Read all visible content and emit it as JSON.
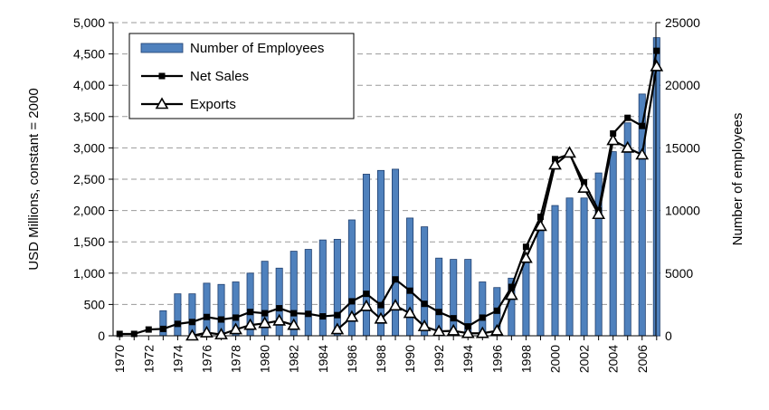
{
  "chart_data": {
    "type": "bar",
    "x": [
      1970,
      1971,
      1972,
      1973,
      1974,
      1975,
      1976,
      1977,
      1978,
      1979,
      1980,
      1981,
      1982,
      1983,
      1984,
      1985,
      1986,
      1987,
      1988,
      1989,
      1990,
      1991,
      1992,
      1993,
      1994,
      1995,
      1996,
      1997,
      1998,
      1999,
      2000,
      2001,
      2002,
      2003,
      2004,
      2005,
      2006,
      2007
    ],
    "x_tick_labels": [
      "1970",
      "1972",
      "1974",
      "1976",
      "1978",
      "1980",
      "1982",
      "1984",
      "1986",
      "1988",
      "1990",
      "1992",
      "1994",
      "1996",
      "1998",
      "2000",
      "2002",
      "2004",
      "2006"
    ],
    "series": [
      {
        "name": "Number of Employees",
        "type": "bar",
        "axis": "right",
        "color": "#4f81bd",
        "values": [
          null,
          null,
          null,
          2000,
          3350,
          3350,
          4200,
          4100,
          4300,
          5000,
          5950,
          5400,
          6750,
          6900,
          7650,
          7700,
          9250,
          12900,
          13200,
          13300,
          9400,
          8700,
          6200,
          6100,
          6100,
          4300,
          3850,
          4600,
          6000,
          8500,
          10400,
          11000,
          11000,
          13000,
          14700,
          17000,
          19300,
          23800
        ]
      },
      {
        "name": "Net Sales",
        "type": "line",
        "axis": "left",
        "marker": "square",
        "color": "#000000",
        "values": [
          30,
          30,
          100,
          110,
          190,
          220,
          300,
          260,
          290,
          380,
          360,
          440,
          360,
          350,
          310,
          330,
          550,
          670,
          490,
          900,
          720,
          510,
          380,
          280,
          150,
          290,
          400,
          780,
          1420,
          1900,
          2820,
          2900,
          2450,
          2000,
          3230,
          3480,
          3350,
          4550
        ]
      },
      {
        "name": "Exports",
        "type": "line",
        "axis": "left",
        "marker": "triangle",
        "color": "#000000",
        "values": [
          null,
          null,
          null,
          null,
          null,
          0,
          50,
          20,
          100,
          170,
          200,
          240,
          170,
          null,
          null,
          100,
          300,
          470,
          270,
          480,
          360,
          150,
          70,
          80,
          40,
          40,
          80,
          650,
          1240,
          1750,
          2730,
          2920,
          2360,
          1940,
          3120,
          3000,
          2890,
          4300
        ]
      }
    ],
    "ylabel": "USD Millions, constant = 2000",
    "y2label": "Number of employees",
    "ylim": [
      0,
      5000
    ],
    "y2lim": [
      0,
      25000
    ],
    "y_ticks": [
      "0",
      "500",
      "1,000",
      "1,500",
      "2,000",
      "2,500",
      "3,000",
      "3,500",
      "4,000",
      "4,500",
      "5,000"
    ],
    "y2_ticks": [
      "0",
      "5000",
      "10000",
      "15000",
      "20000",
      "25000"
    ],
    "grid": "horizontal dashed",
    "legend_position": "top-left"
  }
}
